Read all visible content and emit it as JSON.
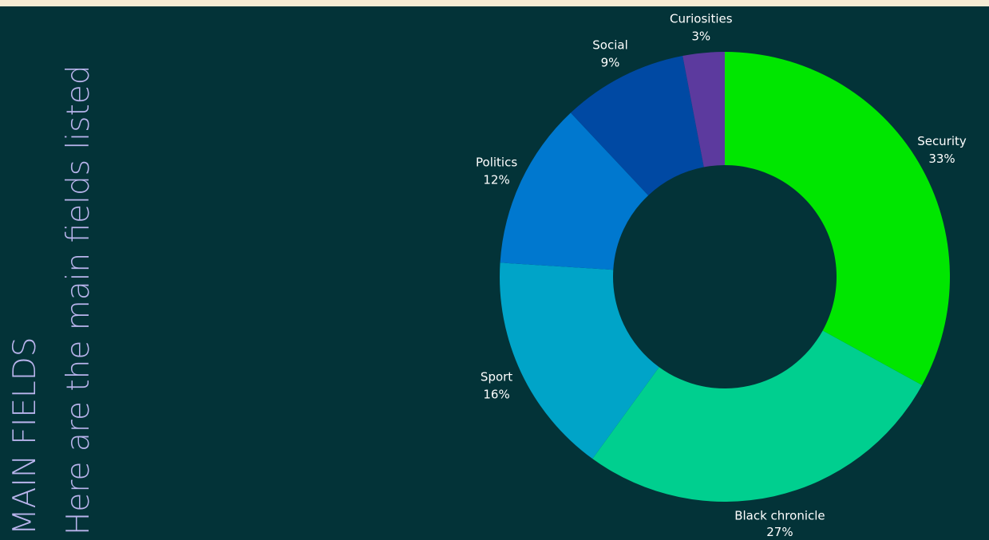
{
  "header": {
    "title": "MAIN FIELDS",
    "subtitle": "Here are the main fields listed"
  },
  "colors": {
    "background": "#033338",
    "heading": "#b9b4ec",
    "top_strip": "#f6ecd4"
  },
  "chart_data": {
    "type": "pie",
    "donut": true,
    "title": "",
    "legend": "none",
    "slices": [
      {
        "label": "Security",
        "value": 33,
        "value_label": "33%",
        "color": "#00e600"
      },
      {
        "label": "Black chronicle",
        "value": 27,
        "value_label": "27%",
        "color": "#00cf8f"
      },
      {
        "label": "Sport",
        "value": 16,
        "value_label": "16%",
        "color": "#00a4c8"
      },
      {
        "label": "Politics",
        "value": 12,
        "value_label": "12%",
        "color": "#0078cf"
      },
      {
        "label": "Social",
        "value": 9,
        "value_label": "9%",
        "color": "#0049a3"
      },
      {
        "label": "Curiosities",
        "value": 3,
        "value_label": "3%",
        "color": "#5c3a9e"
      }
    ]
  }
}
